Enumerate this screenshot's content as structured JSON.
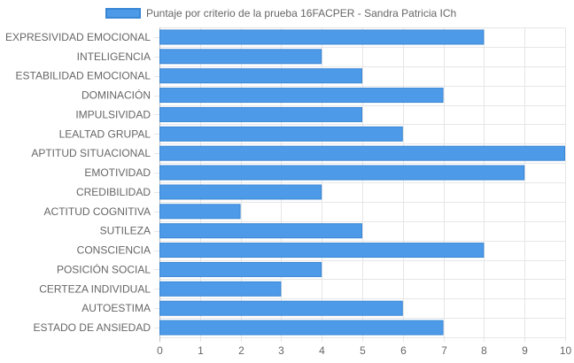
{
  "chart_data": {
    "type": "bar",
    "orientation": "horizontal",
    "categories": [
      "EXPRESIVIDAD EMOCIONAL",
      "INTELIGENCIA",
      "ESTABILIDAD EMOCIONAL",
      "DOMINACIÓN",
      "IMPULSIVIDAD",
      "LEALTAD GRUPAL",
      "APTITUD SITUACIONAL",
      "EMOTIVIDAD",
      "CREDIBILIDAD",
      "ACTITUD COGNITIVA",
      "SUTILEZA",
      "CONSCIENCIA",
      "POSICIÓN SOCIAL",
      "CERTEZA INDIVIDUAL",
      "AUTOESTIMA",
      "ESTADO DE ANSIEDAD"
    ],
    "series": [
      {
        "name": "Puntaje por criterio de la prueba 16FACPER - Sandra Patricia ICh",
        "values": [
          8,
          4,
          5,
          7,
          5,
          6,
          10,
          9,
          4,
          2,
          5,
          8,
          4,
          3,
          6,
          7
        ]
      }
    ],
    "xlim": [
      0,
      10
    ],
    "x_ticks": [
      "0",
      "1",
      "2",
      "3",
      "4",
      "5",
      "6",
      "7",
      "8",
      "9",
      "10"
    ],
    "title": "",
    "xlabel": "",
    "ylabel": "",
    "grid": true,
    "legend_position": "top",
    "bar_color": "#4d9be8",
    "bar_border_color": "#3a86d4",
    "grid_color": "#e6e6e6"
  }
}
